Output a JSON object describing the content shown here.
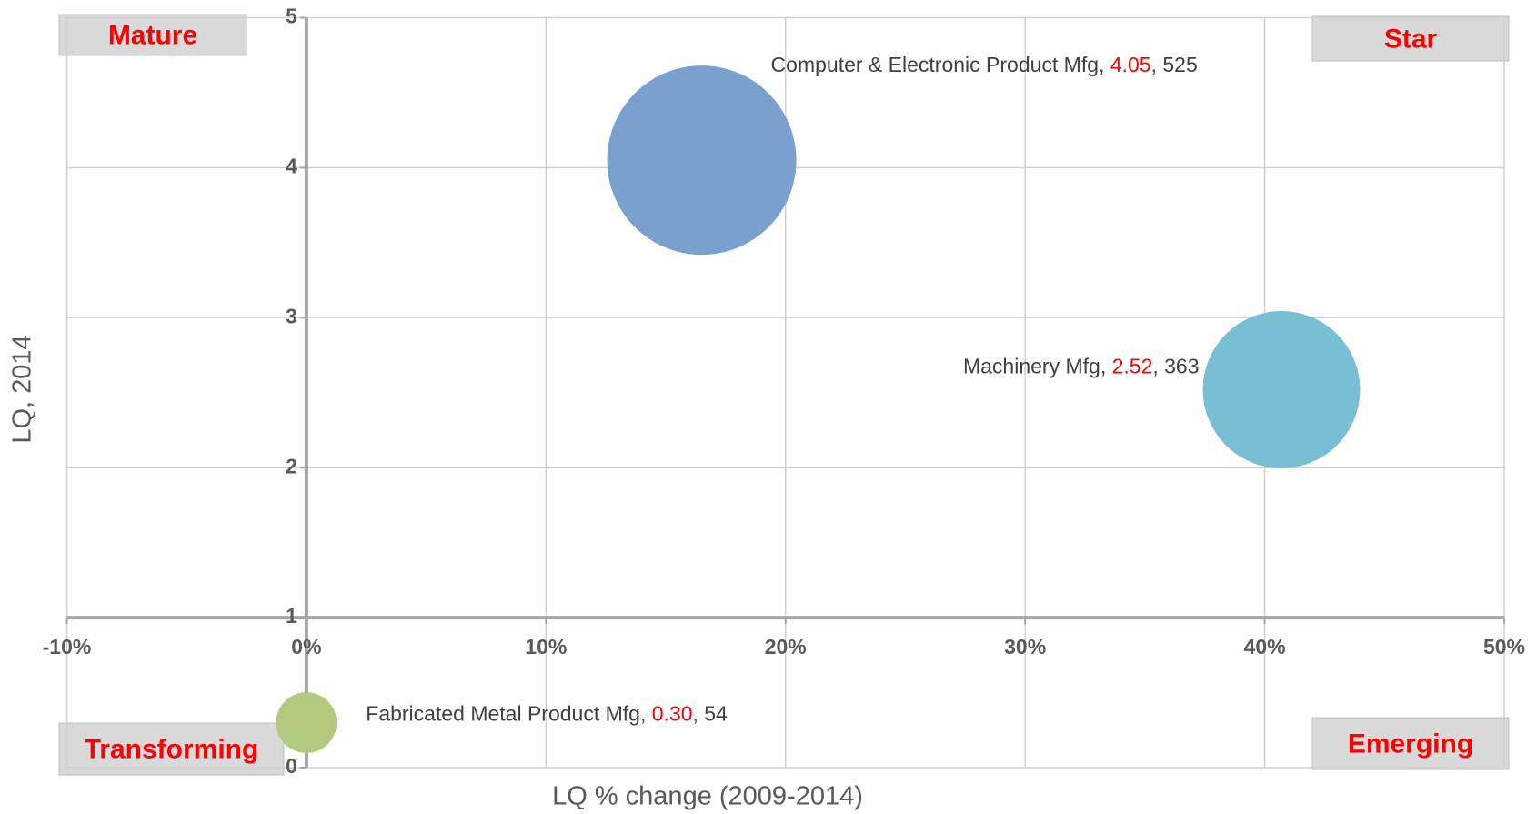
{
  "chart_data": {
    "type": "bubble",
    "xlabel": "LQ % change (2009-2014)",
    "ylabel": "LQ, 2014",
    "xlim": [
      -10,
      50
    ],
    "xticks": [
      {
        "value": -10,
        "label": "-10%"
      },
      {
        "value": 0,
        "label": "0%"
      },
      {
        "value": 10,
        "label": "10%"
      },
      {
        "value": 20,
        "label": "20%"
      },
      {
        "value": 30,
        "label": "30%"
      },
      {
        "value": 40,
        "label": "40%"
      },
      {
        "value": 50,
        "label": "50%"
      }
    ],
    "ylim": [
      0,
      5
    ],
    "yticks": [
      0,
      1,
      2,
      3,
      4,
      5
    ],
    "x_axis_crosses_at": 1,
    "y_axis_crosses_at": 0,
    "grid": true,
    "label_separator": ", ",
    "value_label_color": "#ff0000",
    "quadrants": {
      "top_left": "Mature",
      "top_right": "Star",
      "bottom_left": "Transforming",
      "bottom_right": "Emerging"
    },
    "series": [
      {
        "name": "Computer & Electronic Product Mfg",
        "color": "#7aa0cf",
        "x": [
          16.5
        ],
        "values": [
          4.05
        ],
        "value_labels": [
          "4.05"
        ],
        "sizes": [
          525
        ]
      },
      {
        "name": "Machinery Mfg",
        "color": "#79bfd4",
        "x": [
          40.7
        ],
        "values": [
          2.52
        ],
        "value_labels": [
          "2.52"
        ],
        "sizes": [
          363
        ]
      },
      {
        "name": "Fabricated Metal Product Mfg",
        "color": "#b2ca7d",
        "x": [
          0
        ],
        "values": [
          0.3
        ],
        "value_labels": [
          "0.30"
        ],
        "sizes": [
          54
        ]
      }
    ]
  }
}
